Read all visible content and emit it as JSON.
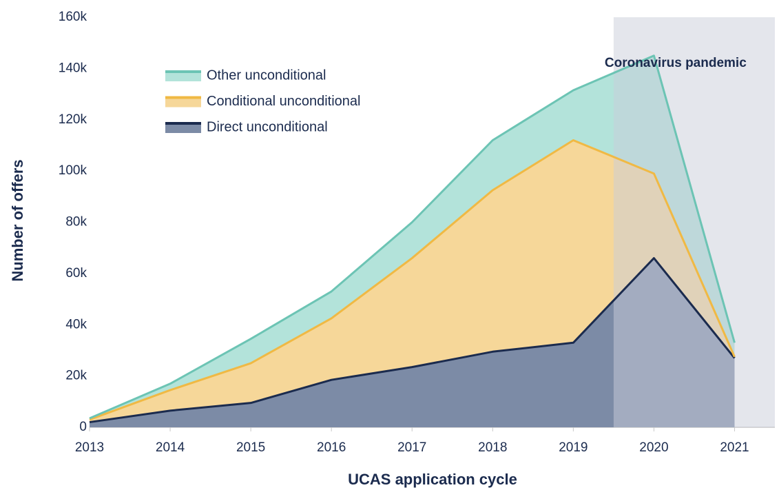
{
  "chart_data": {
    "type": "stacked-area",
    "x_label": "UCAS application cycle",
    "y_label": "Number of offers",
    "x": [
      2013,
      2014,
      2015,
      2016,
      2017,
      2018,
      2019,
      2020,
      2021
    ],
    "xlim": [
      2013,
      2021.5
    ],
    "xticks": [
      2013,
      2014,
      2015,
      2016,
      2017,
      2018,
      2019,
      2020,
      2021
    ],
    "ylim": [
      0,
      160000
    ],
    "yticks": [
      0,
      {
        "value": 20000,
        "label": "20k"
      },
      {
        "value": 40000,
        "label": "40k"
      },
      {
        "value": 60000,
        "label": "60k"
      },
      {
        "value": 80000,
        "label": "80k"
      },
      {
        "value": 100000,
        "label": "100k"
      },
      {
        "value": 120000,
        "label": "120k"
      },
      {
        "value": 140000,
        "label": "140k"
      },
      {
        "value": 160000,
        "label": "160k"
      }
    ],
    "series": [
      {
        "name": "Direct unconditional",
        "color": "#1b2b4e",
        "fill": "#7c8ba6",
        "values": [
          2000,
          6500,
          9500,
          18500,
          23500,
          29500,
          33000,
          66000,
          27000
        ]
      },
      {
        "name": "Conditional unconditional",
        "color": "#f0b944",
        "fill": "#f6d799",
        "values": [
          1000,
          8000,
          15500,
          24000,
          42500,
          63000,
          79000,
          33000,
          500
        ]
      },
      {
        "name": "Other unconditional",
        "color": "#6cc4b4",
        "fill": "#b3e3da",
        "values": [
          500,
          2500,
          9500,
          10500,
          14000,
          19500,
          19500,
          46000,
          5500
        ]
      }
    ],
    "annotation": {
      "text": "Coronavirus pandemic",
      "span": [
        2019.5,
        2021.5
      ],
      "color": "#c9ced9"
    }
  }
}
